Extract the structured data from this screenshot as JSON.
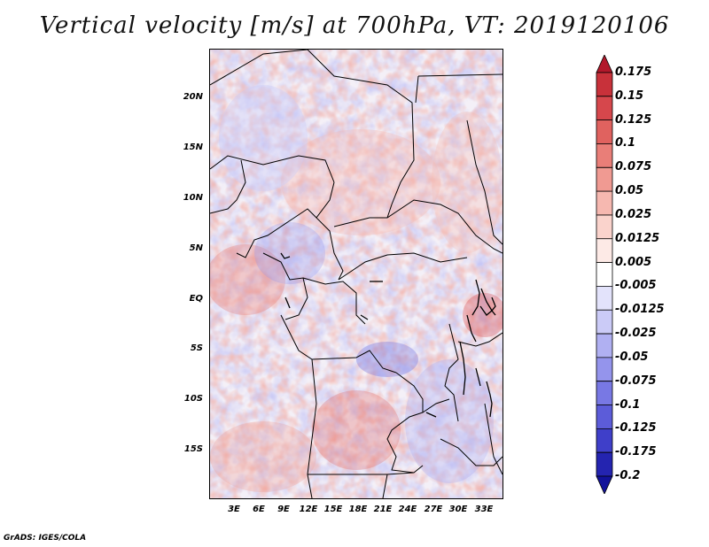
{
  "title": "Vertical velocity [m/s] at 700hPa, VT: 2019120106",
  "credit": "GrADS: IGES/COLA",
  "lat_labels": [
    "20N",
    "15N",
    "10N",
    "5N",
    "EQ",
    "5S",
    "10S",
    "15S"
  ],
  "lon_labels": [
    "3E",
    "6E",
    "9E",
    "12E",
    "15E",
    "18E",
    "21E",
    "24E",
    "27E",
    "30E",
    "33E"
  ],
  "colorbar": {
    "labels": [
      "0.175",
      "0.15",
      "0.125",
      "0.1",
      "0.075",
      "0.05",
      "0.025",
      "0.0125",
      "0.005",
      "-0.005",
      "-0.0125",
      "-0.025",
      "-0.05",
      "-0.075",
      "-0.1",
      "-0.125",
      "-0.175",
      "-0.2"
    ],
    "colors": [
      "#b2182b",
      "#c8313a",
      "#d6474c",
      "#e0625f",
      "#e97e78",
      "#f09a92",
      "#f6b8b0",
      "#fad3cc",
      "#fdeae6",
      "#ffffff",
      "#e3e3fb",
      "#cbcbf7",
      "#b0b0f2",
      "#9494ec",
      "#7878e4",
      "#5c5cd9",
      "#3f3fc9",
      "#2424b0",
      "#12129a"
    ]
  }
}
